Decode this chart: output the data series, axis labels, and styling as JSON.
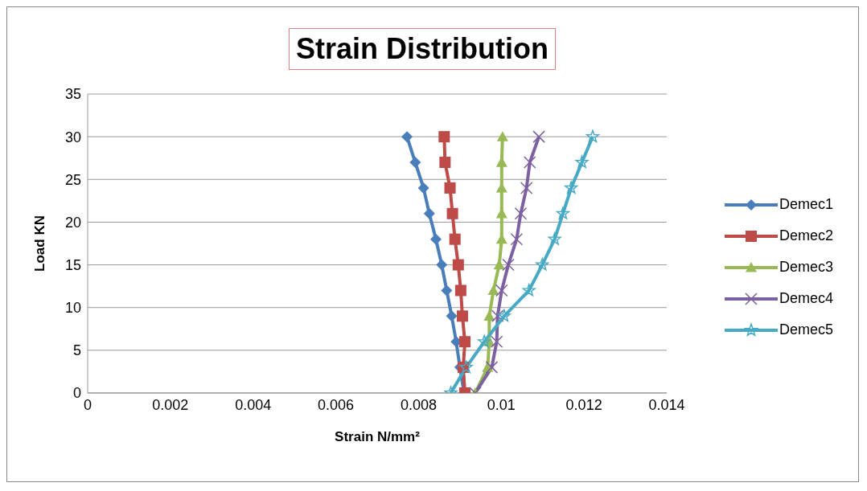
{
  "chart_data": {
    "type": "line",
    "title": "Strain Distribution",
    "xlabel": "Strain N/mm²",
    "ylabel": "Load KN",
    "xlim": [
      0,
      0.014
    ],
    "xticks": [
      0,
      0.002,
      0.004,
      0.006,
      0.008,
      0.01,
      0.012,
      0.014
    ],
    "ylim": [
      0,
      35
    ],
    "yticks": [
      0,
      5,
      10,
      15,
      20,
      25,
      30,
      35
    ],
    "grid": "y",
    "legend": "right",
    "series": [
      {
        "name": "Demec1",
        "color": "#4a7ebb",
        "marker": "diamond",
        "x": [
          0.0091,
          0.009,
          0.00891,
          0.0088,
          0.00868,
          0.00856,
          0.00842,
          0.00826,
          0.00812,
          0.00792,
          0.00772
        ],
        "values": [
          0,
          3,
          6,
          9,
          12,
          15,
          18,
          21,
          24,
          27,
          30
        ]
      },
      {
        "name": "Demec2",
        "color": "#be4b48",
        "marker": "square",
        "x": [
          0.00912,
          0.00908,
          0.00912,
          0.00906,
          0.00902,
          0.00896,
          0.00888,
          0.00882,
          0.00876,
          0.00864,
          0.00862
        ],
        "values": [
          0,
          3,
          6,
          9,
          12,
          15,
          18,
          21,
          24,
          27,
          30
        ]
      },
      {
        "name": "Demec3",
        "color": "#98b954",
        "marker": "triangle",
        "x": [
          0.00937,
          0.00967,
          0.00971,
          0.00971,
          0.00981,
          0.00995,
          0.01001,
          0.01001,
          0.01001,
          0.01001,
          0.01003
        ],
        "values": [
          0,
          3,
          6,
          9,
          12,
          15,
          18,
          21,
          24,
          27,
          30
        ]
      },
      {
        "name": "Demec4",
        "color": "#7d60a0",
        "marker": "cross",
        "x": [
          0.00937,
          0.00977,
          0.00989,
          0.00991,
          0.01001,
          0.01017,
          0.01037,
          0.01047,
          0.01061,
          0.01069,
          0.01091
        ],
        "values": [
          0,
          3,
          6,
          9,
          12,
          15,
          18,
          21,
          24,
          27,
          30
        ]
      },
      {
        "name": "Demec5",
        "color": "#46aac5",
        "marker": "star",
        "x": [
          0.00878,
          0.00915,
          0.00959,
          0.01007,
          0.01067,
          0.01099,
          0.01129,
          0.01149,
          0.01169,
          0.01195,
          0.01221
        ],
        "values": [
          0,
          3,
          6,
          9,
          12,
          15,
          18,
          21,
          24,
          27,
          30
        ]
      }
    ]
  }
}
